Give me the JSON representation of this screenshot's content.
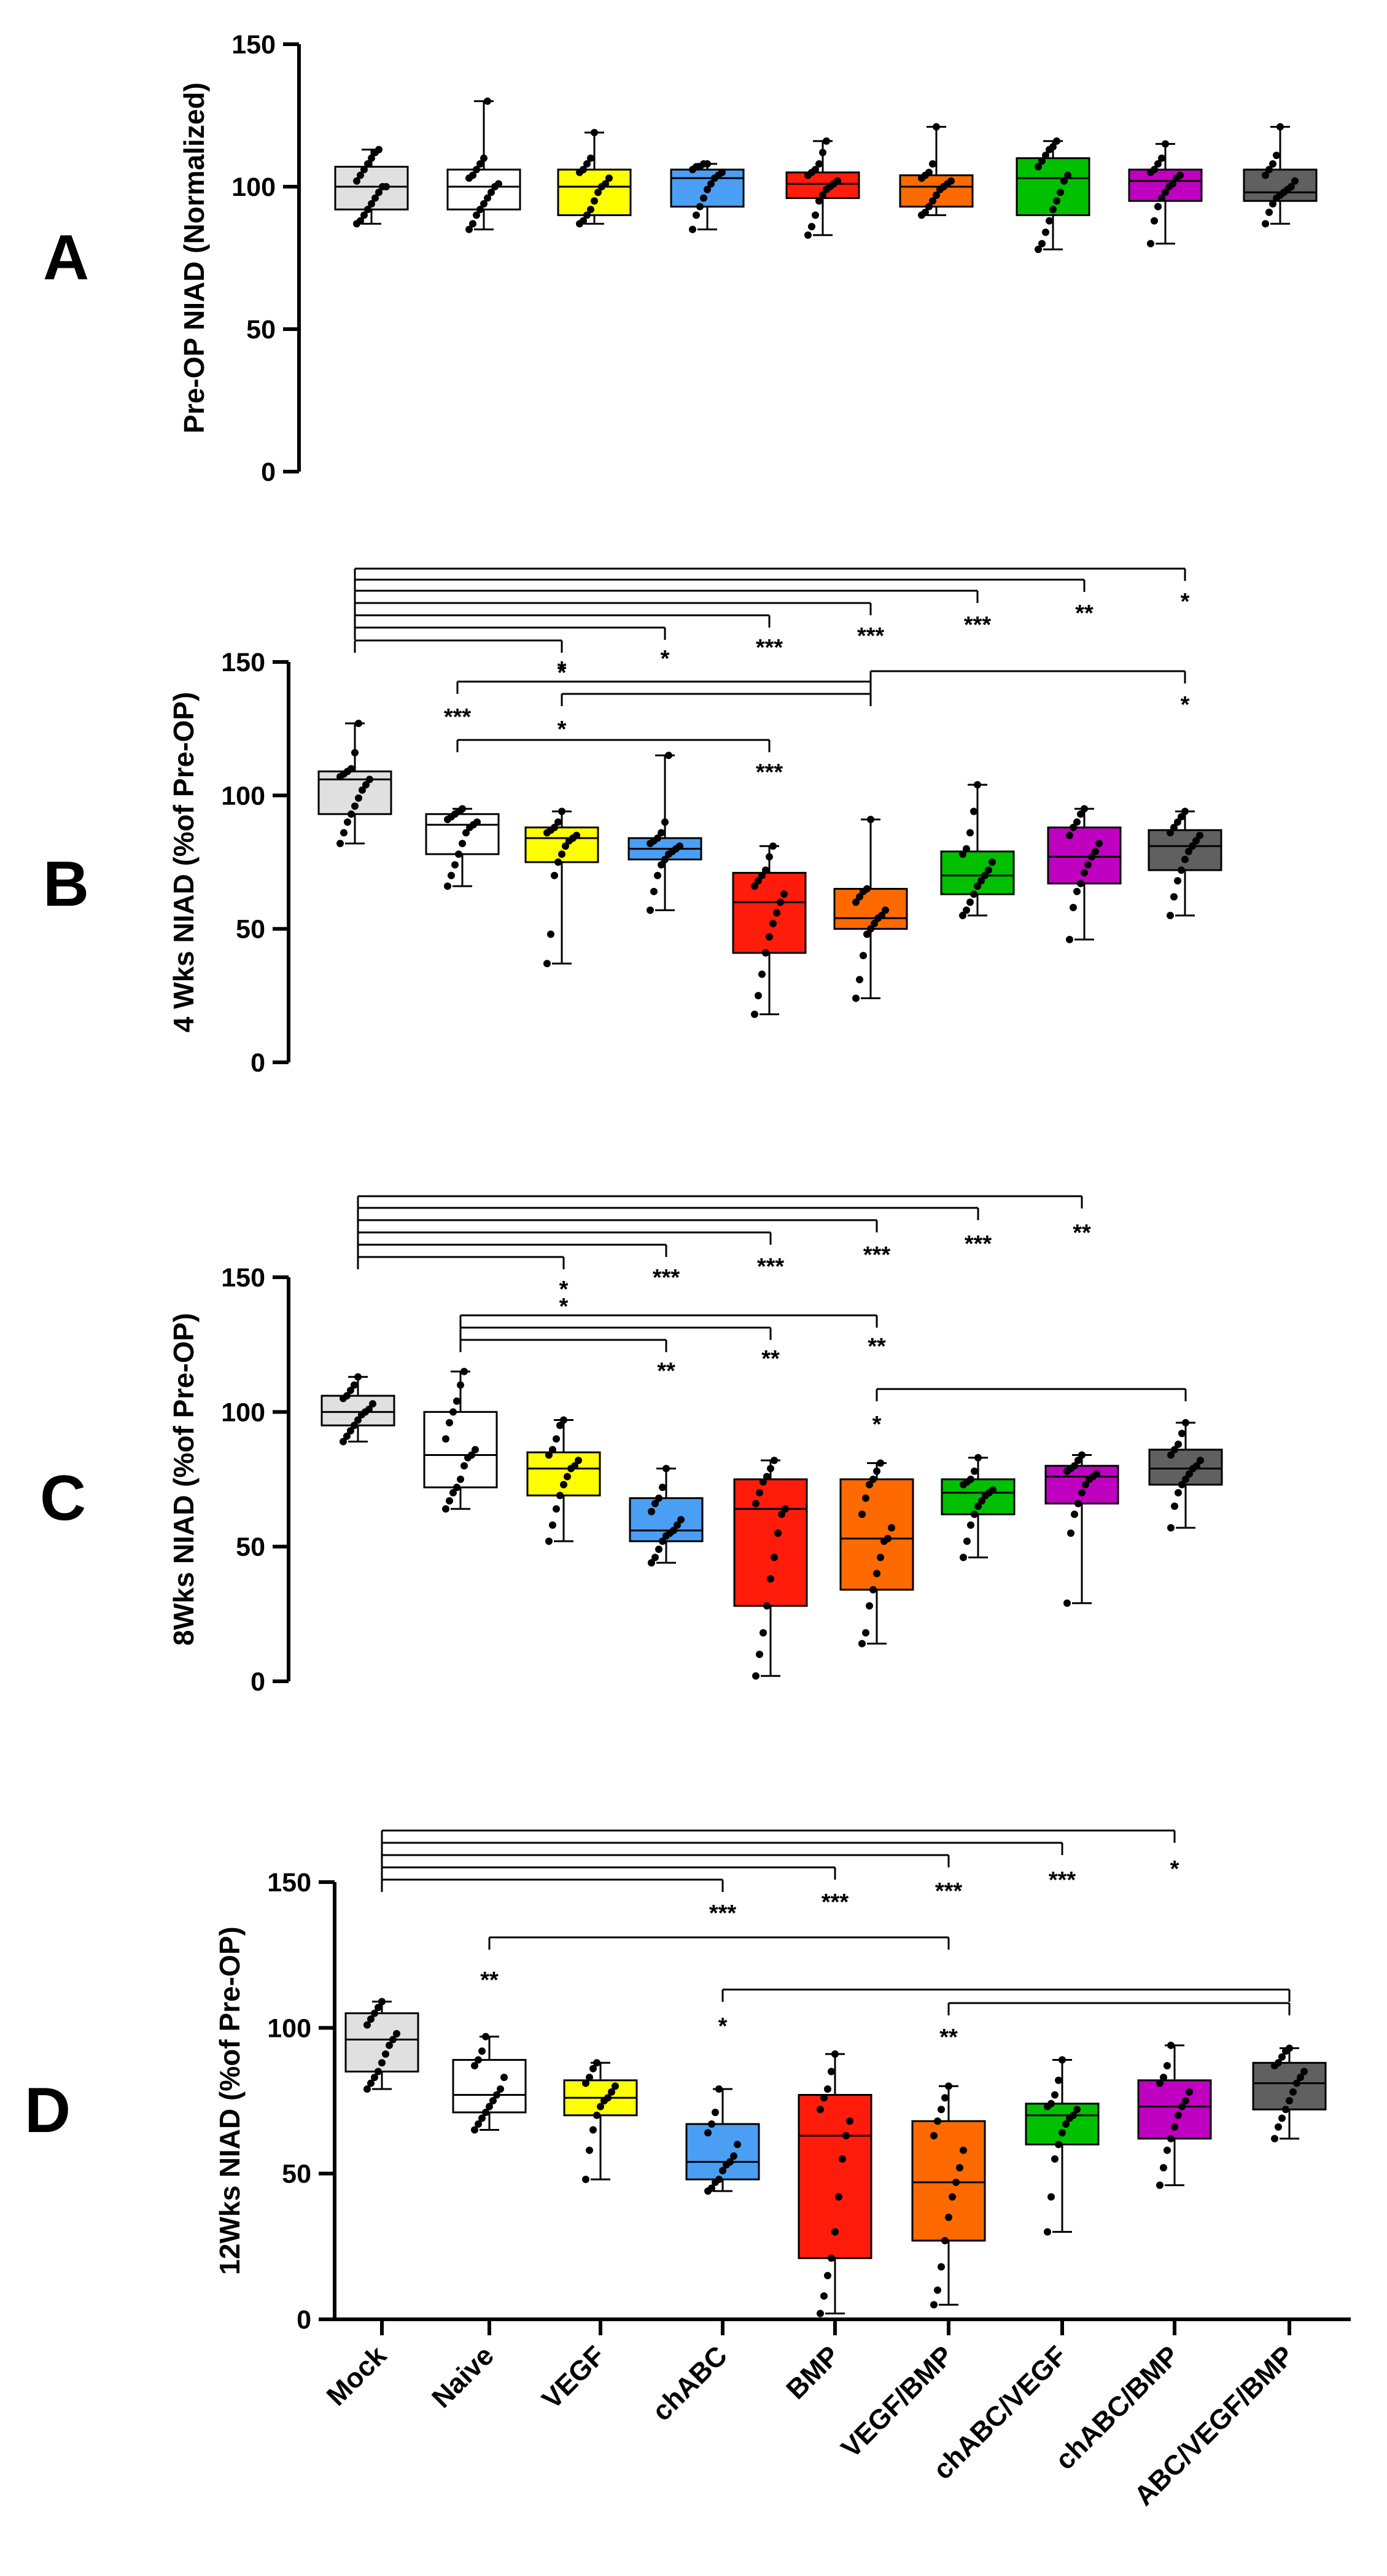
{
  "figure": {
    "categories": [
      "Mock",
      "Naive",
      "VEGF",
      "chABC",
      "BMP",
      "VEGF/BMP",
      "chABC/VEGF",
      "chABC/BMP",
      "ABC/VEGF/BMP"
    ],
    "colors": [
      "#e0e0e0",
      "#ffffff",
      "#ffff00",
      "#4a9ff5",
      "#ff1c0b",
      "#ff6a00",
      "#00c000",
      "#c000c0",
      "#606060"
    ]
  },
  "chart_data": [
    {
      "type": "box",
      "panel": "A",
      "ylabel": "Pre-OP NIAD (Normalized)",
      "ylim": [
        0,
        150
      ],
      "yticks": [
        0,
        50,
        100,
        150
      ],
      "boxes": [
        {
          "min": 87,
          "q1": 92,
          "median": 100,
          "q3": 107,
          "max": 113,
          "points": [
            87,
            88,
            90,
            92,
            94,
            96,
            98,
            100,
            100,
            102,
            104,
            106,
            108,
            110,
            112,
            113
          ]
        },
        {
          "min": 85,
          "q1": 92,
          "median": 100,
          "q3": 106,
          "max": 130,
          "points": [
            85,
            87,
            90,
            92,
            94,
            96,
            98,
            100,
            101,
            103,
            104,
            106,
            108,
            110,
            130
          ]
        },
        {
          "min": 87,
          "q1": 90,
          "median": 100,
          "q3": 106,
          "max": 119,
          "points": [
            87,
            88,
            90,
            92,
            95,
            98,
            100,
            101,
            103,
            105,
            106,
            108,
            110,
            119
          ]
        },
        {
          "min": 85,
          "q1": 93,
          "median": 103,
          "q3": 106,
          "max": 108,
          "points": [
            85,
            90,
            93,
            96,
            99,
            101,
            103,
            104,
            105,
            106,
            107,
            107,
            108,
            108
          ]
        },
        {
          "min": 83,
          "q1": 96,
          "median": 101,
          "q3": 105,
          "max": 116,
          "points": [
            83,
            86,
            90,
            95,
            97,
            99,
            100,
            101,
            102,
            104,
            105,
            106,
            108,
            112,
            116
          ]
        },
        {
          "min": 90,
          "q1": 93,
          "median": 100,
          "q3": 104,
          "max": 121,
          "points": [
            90,
            91,
            93,
            95,
            97,
            99,
            100,
            101,
            102,
            103,
            104,
            105,
            108,
            121
          ]
        },
        {
          "min": 78,
          "q1": 90,
          "median": 103,
          "q3": 110,
          "max": 116,
          "points": [
            78,
            80,
            84,
            88,
            92,
            95,
            98,
            102,
            104,
            107,
            109,
            111,
            113,
            114,
            116
          ]
        },
        {
          "min": 80,
          "q1": 95,
          "median": 102,
          "q3": 106,
          "max": 115,
          "points": [
            80,
            88,
            93,
            96,
            98,
            100,
            101,
            103,
            104,
            105,
            106,
            108,
            110,
            115
          ]
        },
        {
          "min": 87,
          "q1": 95,
          "median": 98,
          "q3": 106,
          "max": 121,
          "points": [
            87,
            91,
            94,
            96,
            97,
            98,
            99,
            100,
            102,
            104,
            106,
            108,
            111,
            121
          ]
        }
      ],
      "significance": []
    },
    {
      "type": "box",
      "panel": "B",
      "ylabel": "4 Wks NIAD (%of Pre-OP)",
      "ylim": [
        0,
        150
      ],
      "yticks": [
        0,
        50,
        100,
        150
      ],
      "boxes": [
        {
          "min": 82,
          "q1": 93,
          "median": 106,
          "q3": 109,
          "max": 127,
          "points": [
            82,
            86,
            90,
            93,
            96,
            99,
            102,
            104,
            106,
            107,
            108,
            109,
            110,
            116,
            127
          ]
        },
        {
          "min": 66,
          "q1": 78,
          "median": 89,
          "q3": 93,
          "max": 95,
          "points": [
            66,
            70,
            74,
            78,
            82,
            86,
            88,
            89,
            90,
            91,
            92,
            93,
            94,
            95
          ]
        },
        {
          "min": 37,
          "q1": 75,
          "median": 84,
          "q3": 88,
          "max": 94,
          "points": [
            37,
            48,
            70,
            75,
            78,
            81,
            83,
            84,
            85,
            86,
            87,
            88,
            90,
            94
          ]
        },
        {
          "min": 57,
          "q1": 76,
          "median": 80,
          "q3": 84,
          "max": 115,
          "points": [
            57,
            64,
            70,
            74,
            76,
            78,
            79,
            80,
            81,
            82,
            83,
            84,
            86,
            90,
            115
          ]
        },
        {
          "min": 18,
          "q1": 41,
          "median": 60,
          "q3": 71,
          "max": 81,
          "points": [
            18,
            25,
            33,
            41,
            47,
            52,
            56,
            60,
            63,
            66,
            68,
            70,
            72,
            77,
            81
          ]
        },
        {
          "min": 24,
          "q1": 50,
          "median": 54,
          "q3": 65,
          "max": 91,
          "points": [
            24,
            31,
            40,
            48,
            50,
            52,
            54,
            55,
            57,
            60,
            62,
            64,
            65,
            91
          ]
        },
        {
          "min": 55,
          "q1": 63,
          "median": 70,
          "q3": 79,
          "max": 104,
          "points": [
            55,
            57,
            60,
            63,
            66,
            68,
            70,
            72,
            75,
            78,
            80,
            86,
            94,
            104
          ]
        },
        {
          "min": 46,
          "q1": 67,
          "median": 77,
          "q3": 88,
          "max": 95,
          "points": [
            46,
            58,
            64,
            67,
            71,
            74,
            77,
            79,
            82,
            85,
            88,
            90,
            93,
            95
          ]
        },
        {
          "min": 55,
          "q1": 72,
          "median": 81,
          "q3": 87,
          "max": 94,
          "points": [
            55,
            62,
            68,
            72,
            76,
            79,
            81,
            83,
            85,
            86,
            88,
            90,
            92,
            94
          ]
        }
      ],
      "significance": [
        {
          "from": 0,
          "to": 3,
          "label": "*"
        },
        {
          "from": 0,
          "to": 4,
          "label": "*"
        },
        {
          "from": 0,
          "to": 5,
          "label": "***"
        },
        {
          "from": 0,
          "to": 6,
          "label": "***"
        },
        {
          "from": 0,
          "to": 7,
          "label": "***"
        },
        {
          "from": 0,
          "to": 8,
          "label": "**"
        },
        {
          "from": 0,
          "to": 9,
          "label": "*"
        },
        {
          "from": 2,
          "to": 6,
          "label": "*"
        },
        {
          "from": 3,
          "to": 6,
          "label": "*"
        },
        {
          "from": 2,
          "to": 5,
          "label": "***"
        },
        {
          "from": 6,
          "to": 9,
          "label": "*"
        },
        {
          "from": 2,
          "to": 2,
          "label": "***"
        }
      ]
    },
    {
      "type": "box",
      "panel": "C",
      "ylabel": "8Wks NIAD (%of Pre-OP)",
      "ylim": [
        0,
        150
      ],
      "yticks": [
        0,
        50,
        100,
        150
      ],
      "boxes": [
        {
          "min": 89,
          "q1": 95,
          "median": 100,
          "q3": 106,
          "max": 113,
          "points": [
            89,
            91,
            93,
            95,
            97,
            99,
            100,
            101,
            103,
            105,
            106,
            108,
            110,
            113
          ]
        },
        {
          "min": 64,
          "q1": 72,
          "median": 84,
          "q3": 100,
          "max": 115,
          "points": [
            64,
            67,
            70,
            72,
            75,
            80,
            83,
            84,
            86,
            90,
            96,
            100,
            104,
            110,
            115
          ]
        },
        {
          "min": 52,
          "q1": 69,
          "median": 79,
          "q3": 85,
          "max": 97,
          "points": [
            52,
            58,
            64,
            69,
            73,
            76,
            79,
            80,
            82,
            84,
            86,
            90,
            95,
            97
          ]
        },
        {
          "min": 44,
          "q1": 52,
          "median": 56,
          "q3": 68,
          "max": 79,
          "points": [
            44,
            46,
            49,
            52,
            54,
            55,
            56,
            58,
            60,
            63,
            66,
            68,
            72,
            79
          ]
        },
        {
          "min": 2,
          "q1": 28,
          "median": 64,
          "q3": 75,
          "max": 82,
          "points": [
            2,
            10,
            18,
            28,
            38,
            46,
            55,
            62,
            64,
            66,
            70,
            74,
            76,
            79,
            82
          ]
        },
        {
          "min": 14,
          "q1": 34,
          "median": 53,
          "q3": 75,
          "max": 81,
          "points": [
            14,
            18,
            28,
            34,
            40,
            46,
            52,
            53,
            57,
            62,
            68,
            73,
            75,
            78,
            81
          ]
        },
        {
          "min": 46,
          "q1": 62,
          "median": 70,
          "q3": 75,
          "max": 83,
          "points": [
            46,
            52,
            58,
            62,
            65,
            67,
            69,
            70,
            71,
            73,
            74,
            75,
            78,
            83
          ]
        },
        {
          "min": 29,
          "q1": 66,
          "median": 76,
          "q3": 80,
          "max": 84,
          "points": [
            29,
            55,
            62,
            66,
            70,
            73,
            75,
            76,
            77,
            78,
            79,
            80,
            82,
            84
          ]
        },
        {
          "min": 57,
          "q1": 73,
          "median": 79,
          "q3": 86,
          "max": 96,
          "points": [
            57,
            65,
            70,
            73,
            75,
            77,
            79,
            80,
            82,
            84,
            86,
            88,
            92,
            96
          ]
        }
      ],
      "significance": [
        {
          "from": 0,
          "to": 3,
          "label": "*"
        },
        {
          "from": 0,
          "to": 4,
          "label": "***"
        },
        {
          "from": 0,
          "to": 5,
          "label": "***"
        },
        {
          "from": 0,
          "to": 6,
          "label": "***"
        },
        {
          "from": 0,
          "to": 7,
          "label": "***"
        },
        {
          "from": 0,
          "to": 8,
          "label": "**"
        },
        {
          "from": 1,
          "to": 6,
          "label": "*"
        },
        {
          "from": 1,
          "to": 5,
          "label": "**"
        },
        {
          "from": 1,
          "to": 4,
          "label": "**"
        },
        {
          "from": 5,
          "to": 9,
          "label": "**"
        },
        {
          "from": 6,
          "to": 9,
          "label": "*"
        }
      ]
    },
    {
      "type": "box",
      "panel": "D",
      "ylabel": "12Wks NIAD (%of Pre-OP)",
      "ylim": [
        0,
        150
      ],
      "yticks": [
        0,
        50,
        100,
        150
      ],
      "boxes": [
        {
          "min": 79,
          "q1": 85,
          "median": 96,
          "q3": 105,
          "max": 109,
          "points": [
            79,
            81,
            83,
            85,
            88,
            91,
            94,
            96,
            98,
            101,
            103,
            105,
            107,
            109
          ]
        },
        {
          "min": 65,
          "q1": 71,
          "median": 77,
          "q3": 89,
          "max": 97,
          "points": [
            65,
            67,
            69,
            71,
            73,
            75,
            77,
            79,
            83,
            87,
            89,
            92,
            97
          ]
        },
        {
          "min": 48,
          "q1": 70,
          "median": 76,
          "q3": 82,
          "max": 88,
          "points": [
            48,
            58,
            65,
            70,
            73,
            75,
            76,
            78,
            80,
            81,
            83,
            86,
            88
          ]
        },
        {
          "min": 44,
          "q1": 48,
          "median": 54,
          "q3": 67,
          "max": 79,
          "points": [
            44,
            45,
            47,
            48,
            51,
            53,
            54,
            56,
            60,
            64,
            67,
            71,
            79
          ]
        },
        {
          "min": 2,
          "q1": 21,
          "median": 63,
          "q3": 77,
          "max": 91,
          "points": [
            2,
            8,
            15,
            21,
            30,
            42,
            55,
            63,
            68,
            72,
            76,
            79,
            85,
            91
          ]
        },
        {
          "min": 5,
          "q1": 27,
          "median": 47,
          "q3": 68,
          "max": 80,
          "points": [
            5,
            10,
            18,
            27,
            35,
            42,
            47,
            52,
            58,
            63,
            68,
            72,
            76,
            80
          ]
        },
        {
          "min": 30,
          "q1": 60,
          "median": 70,
          "q3": 74,
          "max": 89,
          "points": [
            30,
            42,
            55,
            60,
            64,
            67,
            69,
            70,
            72,
            73,
            74,
            77,
            82,
            89
          ]
        },
        {
          "min": 46,
          "q1": 62,
          "median": 73,
          "q3": 82,
          "max": 94,
          "points": [
            46,
            52,
            58,
            62,
            66,
            70,
            73,
            75,
            78,
            81,
            83,
            87,
            94
          ]
        },
        {
          "min": 62,
          "q1": 72,
          "median": 81,
          "q3": 88,
          "max": 93,
          "points": [
            62,
            66,
            69,
            72,
            75,
            78,
            81,
            83,
            85,
            87,
            88,
            90,
            92,
            93
          ]
        }
      ],
      "significance": [
        {
          "from": 0,
          "to": 4,
          "label": "***"
        },
        {
          "from": 0,
          "to": 5,
          "label": "***"
        },
        {
          "from": 0,
          "to": 6,
          "label": "***"
        },
        {
          "from": 0,
          "to": 7,
          "label": "***"
        },
        {
          "from": 0,
          "to": 8,
          "label": "*"
        },
        {
          "from": 1,
          "to": 6,
          "label": "**"
        },
        {
          "from": 3,
          "to": 9,
          "label": "*"
        },
        {
          "from": 5,
          "to": 9,
          "label": "**"
        }
      ]
    }
  ]
}
